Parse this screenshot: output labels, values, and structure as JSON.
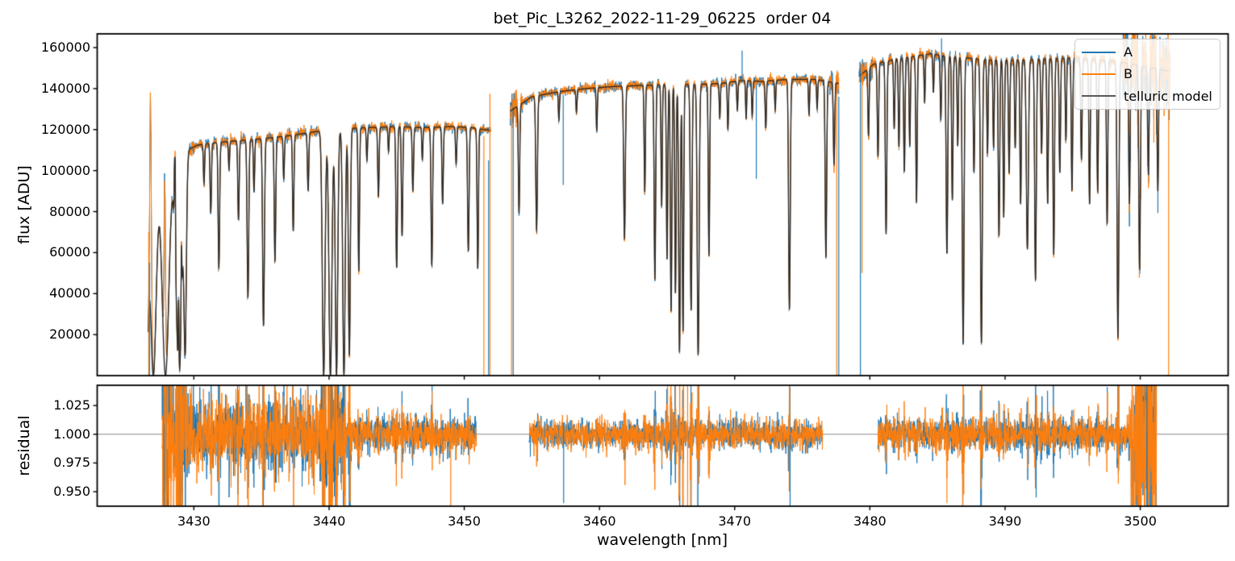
{
  "title": "bet_Pic_L3262_2022-11-29_06225  order 04",
  "chart_data": {
    "type": "line",
    "title": "bet_Pic_L3262_2022-11-29_06225  order 04",
    "xlabel": "wavelength [nm]",
    "xlim": [
      3422.85,
      3506.5
    ],
    "xticks": [
      {
        "v": 3430,
        "label": "3430"
      },
      {
        "v": 3440,
        "label": "3440"
      },
      {
        "v": 3450,
        "label": "3450"
      },
      {
        "v": 3460,
        "label": "3460"
      },
      {
        "v": 3470,
        "label": "3470"
      },
      {
        "v": 3480,
        "label": "3480"
      },
      {
        "v": 3490,
        "label": "3490"
      },
      {
        "v": 3500,
        "label": "3500"
      }
    ],
    "panels": [
      {
        "name": "flux",
        "ylabel": "flux [ADU]",
        "ylim": [
          0,
          166700
        ],
        "yticks": [
          {
            "v": 20000,
            "label": "20000"
          },
          {
            "v": 40000,
            "label": "40000"
          },
          {
            "v": 60000,
            "label": "60000"
          },
          {
            "v": 80000,
            "label": "80000"
          },
          {
            "v": 100000,
            "label": "100000"
          },
          {
            "v": 120000,
            "label": "120000"
          },
          {
            "v": 140000,
            "label": "140000"
          },
          {
            "v": 160000,
            "label": "160000"
          }
        ]
      },
      {
        "name": "residual",
        "ylabel": "residual",
        "ylim": [
          0.9374,
          1.0426
        ],
        "yticks": [
          {
            "v": 0.95,
            "label": "0.950"
          },
          {
            "v": 0.975,
            "label": "0.975"
          },
          {
            "v": 1.0,
            "label": "1.000"
          },
          {
            "v": 1.025,
            "label": "1.025"
          }
        ],
        "hline": 1.0
      }
    ],
    "legend": {
      "entries": [
        {
          "label": "A",
          "color": "#1f77b4"
        },
        {
          "label": "B",
          "color": "#ff7f0e"
        },
        {
          "label": "telluric model",
          "color": "#595959"
        }
      ]
    },
    "series_colors": {
      "A": "#1f77b4",
      "B": "#ff7f0e",
      "model": "#2f2b28"
    },
    "background": "#ffffff",
    "segments": [
      {
        "range": [
          3426.62,
          3451.95
        ],
        "resid_range": [
          3427.65,
          3450.9
        ],
        "continuum": [
          [
            3426.6,
            100000
          ],
          [
            3427.5,
            103000
          ],
          [
            3428.5,
            106000
          ],
          [
            3429.5,
            110000
          ],
          [
            3430.3,
            112500
          ],
          [
            3431.5,
            113500
          ],
          [
            3433,
            114500
          ],
          [
            3435,
            115500
          ],
          [
            3437,
            117000
          ],
          [
            3439,
            119000
          ],
          [
            3441,
            120500
          ],
          [
            3443,
            121000
          ],
          [
            3445,
            121500
          ],
          [
            3447,
            121000
          ],
          [
            3449,
            121500
          ],
          [
            3450.5,
            121000
          ],
          [
            3452,
            119500
          ]
        ],
        "noise_flux": [
          [
            3426.62,
            3430.0,
            0.018
          ],
          [
            3430.0,
            3441.0,
            0.011
          ],
          [
            3441.0,
            3451.95,
            0.009
          ]
        ],
        "noise_resid": [
          [
            3427.65,
            3441.0,
            0.016
          ],
          [
            3441.0,
            3450.9,
            0.0075
          ]
        ]
      },
      {
        "range": [
          3453.4,
          3477.7
        ],
        "resid_range": [
          3454.8,
          3476.5
        ],
        "continuum": [
          [
            3453.4,
            129000
          ],
          [
            3455,
            136000
          ],
          [
            3457,
            138500
          ],
          [
            3459,
            140000
          ],
          [
            3461,
            141000
          ],
          [
            3463,
            141500
          ],
          [
            3465,
            142000
          ],
          [
            3467,
            142000
          ],
          [
            3469,
            142500
          ],
          [
            3470.5,
            144000
          ],
          [
            3472,
            143500
          ],
          [
            3474,
            144500
          ],
          [
            3476,
            144500
          ],
          [
            3477.7,
            142500
          ]
        ],
        "noise_flux": [
          [
            3453.4,
            3454.3,
            0.03
          ],
          [
            3454.3,
            3477.0,
            0.008
          ],
          [
            3477.0,
            3477.7,
            0.02
          ]
        ],
        "noise_resid": [
          [
            3454.8,
            3476.5,
            0.006
          ]
        ]
      },
      {
        "range": [
          3479.2,
          3502.2
        ],
        "resid_range": [
          3480.6,
          3501.2
        ],
        "continuum": [
          [
            3479.2,
            146000
          ],
          [
            3480.3,
            152000
          ],
          [
            3482,
            154500
          ],
          [
            3483.5,
            156000
          ],
          [
            3484.5,
            157000
          ],
          [
            3485.5,
            156000
          ],
          [
            3487,
            155000
          ],
          [
            3489,
            154000
          ],
          [
            3491,
            154000
          ],
          [
            3493,
            154500
          ],
          [
            3495,
            155000
          ],
          [
            3497,
            154000
          ],
          [
            3499,
            152500
          ],
          [
            3500.5,
            150500
          ],
          [
            3502.2,
            148500
          ]
        ],
        "noise_flux": [
          [
            3479.2,
            3480.2,
            0.02
          ],
          [
            3480.2,
            3498.7,
            0.008
          ],
          [
            3498.7,
            3502.2,
            0.07
          ]
        ],
        "noise_resid": [
          [
            3480.6,
            3499.3,
            0.0065
          ],
          [
            3499.3,
            3501.2,
            0.045
          ]
        ]
      }
    ],
    "telluric_lines": [
      [
        3426.5,
        1.0,
        0.15
      ],
      [
        3427.0,
        1.0,
        0.22
      ],
      [
        3427.9,
        1.0,
        0.25
      ],
      [
        3428.9,
        1.0,
        0.22
      ],
      [
        3429.35,
        0.9,
        0.09
      ],
      [
        3430.75,
        0.17,
        0.045
      ],
      [
        3431.25,
        0.3,
        0.05
      ],
      [
        3431.85,
        0.54,
        0.055
      ],
      [
        3432.6,
        0.12,
        0.04
      ],
      [
        3433.3,
        0.34,
        0.05
      ],
      [
        3434.0,
        0.67,
        0.06
      ],
      [
        3434.45,
        0.22,
        0.045
      ],
      [
        3435.15,
        0.79,
        0.065
      ],
      [
        3436.0,
        0.52,
        0.055
      ],
      [
        3436.65,
        0.18,
        0.045
      ],
      [
        3437.35,
        0.4,
        0.05
      ],
      [
        3438.45,
        0.24,
        0.05
      ],
      [
        3439.6,
        1.0,
        0.1
      ],
      [
        3440.1,
        1.0,
        0.11
      ],
      [
        3440.55,
        1.0,
        0.09
      ],
      [
        3441.1,
        1.0,
        0.09
      ],
      [
        3441.5,
        0.92,
        0.07
      ],
      [
        3442.2,
        0.58,
        0.05
      ],
      [
        3442.8,
        0.13,
        0.045
      ],
      [
        3443.65,
        0.28,
        0.05
      ],
      [
        3444.4,
        0.1,
        0.04
      ],
      [
        3445.0,
        0.57,
        0.055
      ],
      [
        3445.4,
        0.44,
        0.05
      ],
      [
        3446.2,
        0.26,
        0.05
      ],
      [
        3446.9,
        0.13,
        0.04
      ],
      [
        3447.6,
        0.56,
        0.055
      ],
      [
        3448.4,
        0.31,
        0.05
      ],
      [
        3449.4,
        0.15,
        0.045
      ],
      [
        3450.3,
        0.5,
        0.055
      ],
      [
        3451.0,
        0.57,
        0.05
      ],
      [
        3454.05,
        0.4,
        0.05
      ],
      [
        3455.35,
        0.48,
        0.06
      ],
      [
        3457.0,
        0.1,
        0.04
      ],
      [
        3458.3,
        0.08,
        0.04
      ],
      [
        3459.8,
        0.15,
        0.042
      ],
      [
        3461.85,
        0.53,
        0.06
      ],
      [
        3463.35,
        0.37,
        0.045
      ],
      [
        3464.1,
        0.67,
        0.055
      ],
      [
        3464.6,
        0.42,
        0.045
      ],
      [
        3465.0,
        0.6,
        0.05
      ],
      [
        3465.3,
        0.78,
        0.055
      ],
      [
        3465.62,
        0.72,
        0.05
      ],
      [
        3465.92,
        0.92,
        0.06
      ],
      [
        3466.18,
        0.85,
        0.05
      ],
      [
        3466.78,
        0.78,
        0.06
      ],
      [
        3467.3,
        0.93,
        0.07
      ],
      [
        3468.1,
        0.59,
        0.05
      ],
      [
        3468.9,
        0.12,
        0.04
      ],
      [
        3469.5,
        0.16,
        0.042
      ],
      [
        3470.2,
        0.1,
        0.04
      ],
      [
        3470.85,
        0.13,
        0.04
      ],
      [
        3471.3,
        0.12,
        0.04
      ],
      [
        3472.3,
        0.16,
        0.045
      ],
      [
        3473.0,
        0.1,
        0.04
      ],
      [
        3474.05,
        0.78,
        0.06
      ],
      [
        3475.5,
        0.12,
        0.04
      ],
      [
        3476.1,
        0.1,
        0.04
      ],
      [
        3476.75,
        0.6,
        0.055
      ],
      [
        3477.35,
        0.28,
        0.05
      ],
      [
        3479.9,
        0.22,
        0.045
      ],
      [
        3480.6,
        0.3,
        0.05
      ],
      [
        3481.2,
        0.55,
        0.055
      ],
      [
        3481.8,
        0.22,
        0.045
      ],
      [
        3482.15,
        0.28,
        0.045
      ],
      [
        3482.55,
        0.36,
        0.05
      ],
      [
        3482.95,
        0.28,
        0.045
      ],
      [
        3483.45,
        0.46,
        0.05
      ],
      [
        3484.05,
        0.15,
        0.04
      ],
      [
        3484.7,
        0.12,
        0.04
      ],
      [
        3485.25,
        0.2,
        0.045
      ],
      [
        3485.7,
        0.62,
        0.06
      ],
      [
        3486.1,
        0.45,
        0.05
      ],
      [
        3486.5,
        0.28,
        0.045
      ],
      [
        3486.9,
        0.9,
        0.065
      ],
      [
        3487.7,
        0.36,
        0.05
      ],
      [
        3488.25,
        0.9,
        0.065
      ],
      [
        3488.7,
        0.3,
        0.045
      ],
      [
        3489.15,
        0.28,
        0.045
      ],
      [
        3489.55,
        0.56,
        0.055
      ],
      [
        3489.9,
        0.5,
        0.05
      ],
      [
        3490.3,
        0.36,
        0.05
      ],
      [
        3490.75,
        0.28,
        0.045
      ],
      [
        3491.15,
        0.46,
        0.05
      ],
      [
        3491.65,
        0.6,
        0.075
      ],
      [
        3492.25,
        0.7,
        0.06
      ],
      [
        3492.7,
        0.3,
        0.05
      ],
      [
        3493.15,
        0.46,
        0.05
      ],
      [
        3493.6,
        0.62,
        0.055
      ],
      [
        3494.05,
        0.36,
        0.05
      ],
      [
        3494.5,
        0.26,
        0.045
      ],
      [
        3494.95,
        0.42,
        0.05
      ],
      [
        3495.65,
        0.32,
        0.05
      ],
      [
        3496.25,
        0.46,
        0.05
      ],
      [
        3496.85,
        0.42,
        0.05
      ],
      [
        3497.55,
        0.52,
        0.05
      ],
      [
        3498.35,
        0.88,
        0.065
      ],
      [
        3499.2,
        0.45,
        0.05
      ],
      [
        3499.95,
        0.66,
        0.06
      ],
      [
        3500.6,
        0.35,
        0.05
      ],
      [
        3501.3,
        0.4,
        0.05
      ]
    ],
    "transmission_windows": [
      [
        3428.6,
        0.52,
        0.035
      ],
      [
        3428.87,
        0.34,
        0.028
      ],
      [
        3429.08,
        0.3,
        0.028
      ]
    ],
    "data_peaks": [
      [
        3426.8,
        101000,
        0.06
      ],
      [
        3427.85,
        90000,
        0.055
      ]
    ],
    "flux_spikes": [
      {
        "s": "B",
        "x": 3426.66,
        "y0": 0,
        "y1": 70000
      },
      {
        "s": "A",
        "x": 3426.72,
        "y0": 0,
        "y1": 55000
      },
      {
        "s": "B",
        "x": 3451.45,
        "y0": 0,
        "y1": 117000
      },
      {
        "s": "A",
        "x": 3451.8,
        "y0": 0,
        "y1": 105000
      },
      {
        "s": "B",
        "x": 3451.9,
        "y0": 0,
        "y1": 137500
      },
      {
        "s": "B",
        "x": 3453.5,
        "y0": 0,
        "y1": 129000
      },
      {
        "s": "A",
        "x": 3453.62,
        "y0": 0,
        "y1": 126000
      },
      {
        "s": "A",
        "x": 3457.32,
        "y0": 93000,
        "y1": 137000
      },
      {
        "s": "A",
        "x": 3470.55,
        "y0": 143000,
        "y1": 158500
      },
      {
        "s": "A",
        "x": 3471.6,
        "y0": 96000,
        "y1": 142000
      },
      {
        "s": "B",
        "x": 3477.55,
        "y0": 0,
        "y1": 139000
      },
      {
        "s": "A",
        "x": 3477.7,
        "y0": 0,
        "y1": 136000
      },
      {
        "s": "A",
        "x": 3479.3,
        "y0": 0,
        "y1": 149000
      },
      {
        "s": "B",
        "x": 3479.42,
        "y0": 50000,
        "y1": 150000
      },
      {
        "s": "A",
        "x": 3485.3,
        "y0": 150000,
        "y1": 164500
      },
      {
        "s": "B",
        "x": 3502.1,
        "y0": 0,
        "y1": 163000
      }
    ],
    "resid_spikes": [
      {
        "s": "B",
        "x": 3441.2,
        "y0": 0.9374,
        "y1": 1.0426
      },
      {
        "s": "B",
        "x": 3449.0,
        "y0": 0.9374,
        "y1": 1.0
      },
      {
        "s": "A",
        "x": 3457.35,
        "y0": 0.94,
        "y1": 1.01
      },
      {
        "s": "B",
        "x": 3466.52,
        "y0": 0.9374,
        "y1": 1.0426
      },
      {
        "s": "A",
        "x": 3474.1,
        "y0": 0.9374,
        "y1": 1.0
      },
      {
        "s": "B",
        "x": 3485.7,
        "y0": 0.94,
        "y1": 1.0
      },
      {
        "s": "A",
        "x": 3492.3,
        "y0": 0.945,
        "y1": 1.0
      },
      {
        "s": "A",
        "x": 3500.5,
        "y0": 0.9374,
        "y1": 1.0426
      },
      {
        "s": "B",
        "x": 3500.9,
        "y0": 0.9374,
        "y1": 1.0426
      }
    ]
  }
}
